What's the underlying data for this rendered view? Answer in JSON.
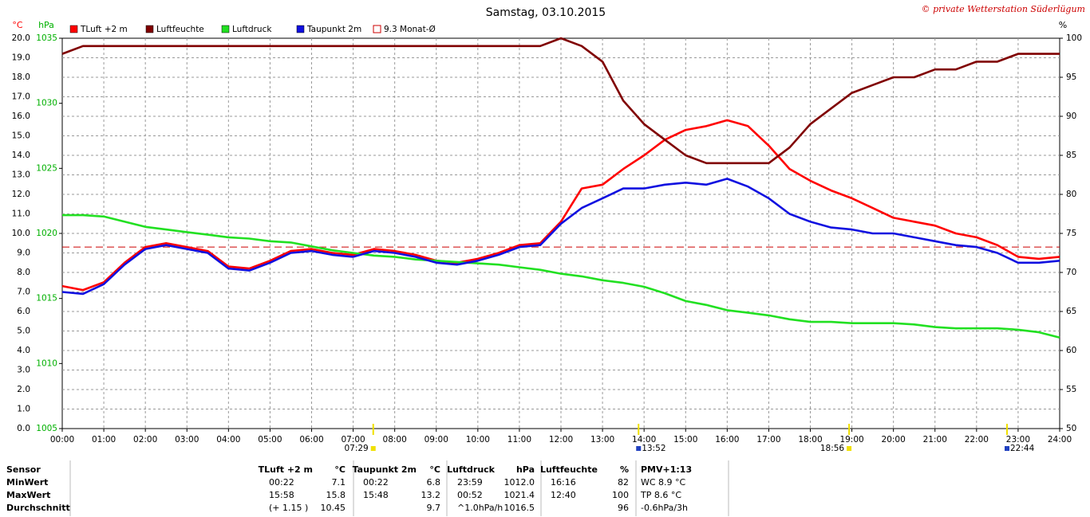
{
  "chart_data": {
    "type": "line",
    "title": "Samstag, 03.10.2015",
    "credit": "© private Wetterstation Süderlügum",
    "y_label": "°C",
    "y2_label": "hPa",
    "y3_label": "%",
    "x": [
      0,
      0.5,
      1,
      1.5,
      2,
      2.5,
      3,
      3.5,
      4,
      4.5,
      5,
      5.5,
      6,
      6.5,
      7,
      7.5,
      8,
      8.5,
      9,
      9.5,
      10,
      10.5,
      11,
      11.5,
      12,
      12.5,
      13,
      13.5,
      14,
      14.5,
      15,
      15.5,
      16,
      16.5,
      17,
      17.5,
      18,
      18.5,
      19,
      19.5,
      20,
      20.5,
      21,
      21.5,
      22,
      22.5,
      23,
      23.5,
      24
    ],
    "xlim": [
      0,
      24
    ],
    "xticks": [
      {
        "value": 0,
        "label": "00:00"
      },
      {
        "value": 1,
        "label": "01:00"
      },
      {
        "value": 2,
        "label": "02:00"
      },
      {
        "value": 3,
        "label": "03:00"
      },
      {
        "value": 4,
        "label": "04:00"
      },
      {
        "value": 5,
        "label": "05:00"
      },
      {
        "value": 6,
        "label": "06:00"
      },
      {
        "value": 7,
        "label": "07:00"
      },
      {
        "value": 8,
        "label": "08:00"
      },
      {
        "value": 9,
        "label": "09:00"
      },
      {
        "value": 10,
        "label": "10:00"
      },
      {
        "value": 11,
        "label": "11:00"
      },
      {
        "value": 12,
        "label": "12:00"
      },
      {
        "value": 13,
        "label": "13:00"
      },
      {
        "value": 14,
        "label": "14:00"
      },
      {
        "value": 15,
        "label": "15:00"
      },
      {
        "value": 16,
        "label": "16:00"
      },
      {
        "value": 17,
        "label": "17:00"
      },
      {
        "value": 18,
        "label": "18:00"
      },
      {
        "value": 19,
        "label": "19:00"
      },
      {
        "value": 20,
        "label": "20:00"
      },
      {
        "value": 21,
        "label": "21:00"
      },
      {
        "value": 22,
        "label": "22:00"
      },
      {
        "value": 23,
        "label": "23:00"
      },
      {
        "value": 24,
        "label": "24:00"
      }
    ],
    "ylim": [
      0,
      20
    ],
    "yticks": [
      {
        "value": 0,
        "label": "0.0"
      },
      {
        "value": 1,
        "label": "1.0"
      },
      {
        "value": 2,
        "label": "2.0"
      },
      {
        "value": 3,
        "label": "3.0"
      },
      {
        "value": 4,
        "label": "4.0"
      },
      {
        "value": 5,
        "label": "5.0"
      },
      {
        "value": 6,
        "label": "6.0"
      },
      {
        "value": 7,
        "label": "7.0"
      },
      {
        "value": 8,
        "label": "8.0"
      },
      {
        "value": 9,
        "label": "9.0"
      },
      {
        "value": 10,
        "label": "10.0"
      },
      {
        "value": 11,
        "label": "11.0"
      },
      {
        "value": 12,
        "label": "12.0"
      },
      {
        "value": 13,
        "label": "13.0"
      },
      {
        "value": 14,
        "label": "14.0"
      },
      {
        "value": 15,
        "label": "15.0"
      },
      {
        "value": 16,
        "label": "16.0"
      },
      {
        "value": 17,
        "label": "17.0"
      },
      {
        "value": 18,
        "label": "18.0"
      },
      {
        "value": 19,
        "label": "19.0"
      },
      {
        "value": 20,
        "label": "20.0"
      }
    ],
    "y2lim": [
      1005,
      1035
    ],
    "y2ticks": [
      1005,
      1010,
      1015,
      1020,
      1025,
      1030,
      1035
    ],
    "y3lim": [
      50,
      100
    ],
    "y3ticks": [
      50,
      55,
      60,
      65,
      70,
      75,
      80,
      85,
      90,
      95,
      100
    ],
    "grid": true,
    "series": [
      {
        "name": "TLuft +2 m",
        "color": "#ff0000",
        "axis": "y",
        "values": [
          7.3,
          7.1,
          7.5,
          8.5,
          9.3,
          9.5,
          9.3,
          9.1,
          8.3,
          8.2,
          8.6,
          9.1,
          9.2,
          9.0,
          8.9,
          9.2,
          9.1,
          8.9,
          8.6,
          8.5,
          8.7,
          9.0,
          9.4,
          9.5,
          10.6,
          12.3,
          12.5,
          13.3,
          14.0,
          14.8,
          15.3,
          15.5,
          15.8,
          15.5,
          14.5,
          13.3,
          12.7,
          12.2,
          11.8,
          11.3,
          10.8,
          10.6,
          10.4,
          10.0,
          9.8,
          9.4,
          8.8,
          8.7,
          8.8
        ]
      },
      {
        "name": "Luftfeuchte",
        "color": "#800000",
        "axis": "y3",
        "values": [
          98,
          99,
          99,
          99,
          99,
          99,
          99,
          99,
          99,
          99,
          99,
          99,
          99,
          99,
          99,
          99,
          99,
          99,
          99,
          99,
          99,
          99,
          99,
          99,
          100,
          99,
          97,
          92,
          89,
          87,
          85,
          84,
          84,
          84,
          84,
          86,
          89,
          91,
          93,
          94,
          95,
          95,
          96,
          96,
          97,
          97,
          98,
          98,
          98
        ]
      },
      {
        "name": "Luftdruck",
        "color": "#22e022",
        "axis": "y2",
        "values": [
          1021.4,
          1021.4,
          1021.3,
          1020.9,
          1020.5,
          1020.3,
          1020.1,
          1019.9,
          1019.7,
          1019.6,
          1019.4,
          1019.3,
          1019.0,
          1018.7,
          1018.5,
          1018.3,
          1018.2,
          1018.0,
          1017.9,
          1017.8,
          1017.7,
          1017.6,
          1017.4,
          1017.2,
          1016.9,
          1016.7,
          1016.4,
          1016.2,
          1015.9,
          1015.4,
          1014.8,
          1014.5,
          1014.1,
          1013.9,
          1013.7,
          1013.4,
          1013.2,
          1013.2,
          1013.1,
          1013.1,
          1013.1,
          1013.0,
          1012.8,
          1012.7,
          1012.7,
          1012.7,
          1012.6,
          1012.4,
          1012.0
        ]
      },
      {
        "name": "Taupunkt 2m",
        "color": "#1010e0",
        "axis": "y",
        "values": [
          7.0,
          6.9,
          7.4,
          8.4,
          9.2,
          9.4,
          9.2,
          9.0,
          8.2,
          8.1,
          8.5,
          9.0,
          9.1,
          8.9,
          8.8,
          9.1,
          9.0,
          8.8,
          8.5,
          8.4,
          8.6,
          8.9,
          9.3,
          9.4,
          10.5,
          11.3,
          11.8,
          12.3,
          12.3,
          12.5,
          12.6,
          12.5,
          12.8,
          12.4,
          11.8,
          11.0,
          10.6,
          10.3,
          10.2,
          10.0,
          10.0,
          9.8,
          9.6,
          9.4,
          9.3,
          9.0,
          8.5,
          8.5,
          8.6
        ]
      }
    ],
    "reference": {
      "value": 9.3,
      "label": "9.3 Monat-Ø",
      "color": "#cc0000"
    },
    "annotations": [
      {
        "value": 7.483,
        "label": "07:29"
      },
      {
        "value": 13.867,
        "label": "13:52"
      },
      {
        "value": 18.933,
        "label": "18:56"
      },
      {
        "value": 22.733,
        "label": "22:44"
      }
    ]
  },
  "table": {
    "header": [
      "Sensor",
      "TLuft +2 m",
      "°C",
      "Taupunkt 2m",
      "°C",
      "Luftdruck",
      "hPa",
      "Luftfeuchte",
      "%",
      "PMV+1:13"
    ],
    "rows": [
      [
        "MinWert",
        "00:22",
        "7.1",
        "00:22",
        "6.8",
        "23:59",
        "1012.0",
        "16:16",
        "82",
        "WC 8.9 °C"
      ],
      [
        "MaxWert",
        "15:58",
        "15.8",
        "15:48",
        "13.2",
        "00:52",
        "1021.4",
        "12:40",
        "100",
        "TP 8.6 °C"
      ],
      [
        "Durchschnitt",
        "(+ 1.15 )",
        "10.45",
        null,
        "9.7",
        "^1.0hPa/h",
        "1016.5",
        null,
        "96",
        "-0.6hPa/3h"
      ]
    ]
  }
}
